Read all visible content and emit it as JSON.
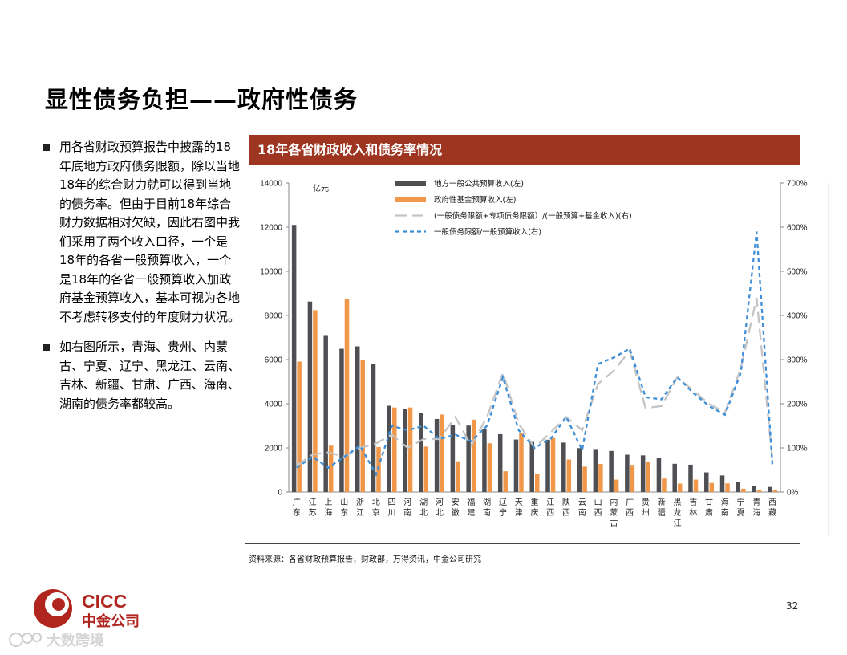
{
  "page": {
    "title": "显性债务负担——政府性债务",
    "bullets": [
      "用各省财政预算报告中披露的18年底地方政府债务限额，除以当地18年的综合财力就可以得到当地的债务率。但由于目前18年综合财力数据相对欠缺，因此右图中我们采用了两个收入口径，一个是18年的各省一般预算收入，一个是18年的各省一般预算收入加政府基金预算收入，基本可视为各地不考虑转移支付的年度财力状况。",
      "如右图所示，青海、贵州、内蒙古、宁夏、辽宁、黑龙江、云南、吉林、新疆、甘肃、广西、海南、湖南的债务率都较高。"
    ],
    "chart_header": "18年各省财政收入和债务率情况",
    "source": "资料来源：各省财政预算报告，财政部，万得资讯，中金公司研究",
    "page_number": "32",
    "logo": {
      "en": "CICC",
      "cn": "中金公司"
    },
    "watermark": "大数跨境"
  },
  "colors": {
    "header_bg": "#9e3520",
    "bar_general": "#4d4f53",
    "bar_fund": "#f0974a",
    "line_total": "#c4c4c4",
    "line_general": "#3f8fd8",
    "logo_red": "#b0261f"
  },
  "chart_data": {
    "type": "bar",
    "unit_label": "亿元",
    "categories": [
      "广东",
      "江苏",
      "上海",
      "山东",
      "浙江",
      "北京",
      "四川",
      "河南",
      "湖北",
      "河北",
      "安徽",
      "福建",
      "湖南",
      "辽宁",
      "天津",
      "重庆",
      "江西",
      "陕西",
      "云南",
      "山西",
      "内蒙古",
      "广西",
      "贵州",
      "新疆",
      "黑龙江",
      "吉林",
      "甘肃",
      "海南",
      "宁夏",
      "青海",
      "西藏"
    ],
    "y_left": {
      "min": 0,
      "max": 14000,
      "ticks": [
        0,
        2000,
        4000,
        6000,
        8000,
        10000,
        12000,
        14000
      ]
    },
    "y_right": {
      "min": 0,
      "max": 700,
      "ticks": [
        "0%",
        "100%",
        "200%",
        "300%",
        "400%",
        "500%",
        "600%",
        "700%"
      ]
    },
    "legend_position": "top",
    "series": [
      {
        "name": "地方一般公共预算收入(左)",
        "type": "bar",
        "axis": "left",
        "values": [
          12100,
          8630,
          7110,
          6490,
          6600,
          5790,
          3910,
          3770,
          3580,
          3310,
          3050,
          3010,
          2860,
          2620,
          2380,
          2270,
          2370,
          2240,
          1990,
          1950,
          1860,
          1690,
          1660,
          1550,
          1280,
          1240,
          890,
          750,
          450,
          290,
          230
        ]
      },
      {
        "name": "政府性基金预算收入(左)",
        "type": "bar",
        "axis": "left",
        "values": [
          5910,
          8240,
          2100,
          8760,
          5990,
          2040,
          3830,
          3830,
          2060,
          3510,
          1390,
          3280,
          2210,
          940,
          2660,
          830,
          2450,
          1470,
          1150,
          1270,
          560,
          1230,
          1350,
          610,
          380,
          560,
          410,
          390,
          150,
          110,
          90
        ]
      },
      {
        "name": "(一般债务限额+专项债务限额）/(一般预算+基金收入)(右)",
        "type": "line",
        "axis": "right",
        "dash": "long",
        "values": [
          60,
          85,
          90,
          80,
          100,
          110,
          130,
          100,
          120,
          120,
          170,
          105,
          170,
          270,
          155,
          100,
          135,
          170,
          140,
          245,
          275,
          320,
          190,
          195,
          260,
          230,
          200,
          180,
          280,
          440,
          70
        ]
      },
      {
        "name": "一般债务限额/一般预算收入(右)",
        "type": "line",
        "axis": "right",
        "dash": "short",
        "values": [
          55,
          80,
          55,
          80,
          105,
          40,
          150,
          140,
          150,
          120,
          130,
          115,
          150,
          260,
          140,
          100,
          120,
          170,
          95,
          290,
          305,
          325,
          215,
          210,
          260,
          225,
          195,
          175,
          270,
          590,
          60
        ]
      }
    ]
  }
}
